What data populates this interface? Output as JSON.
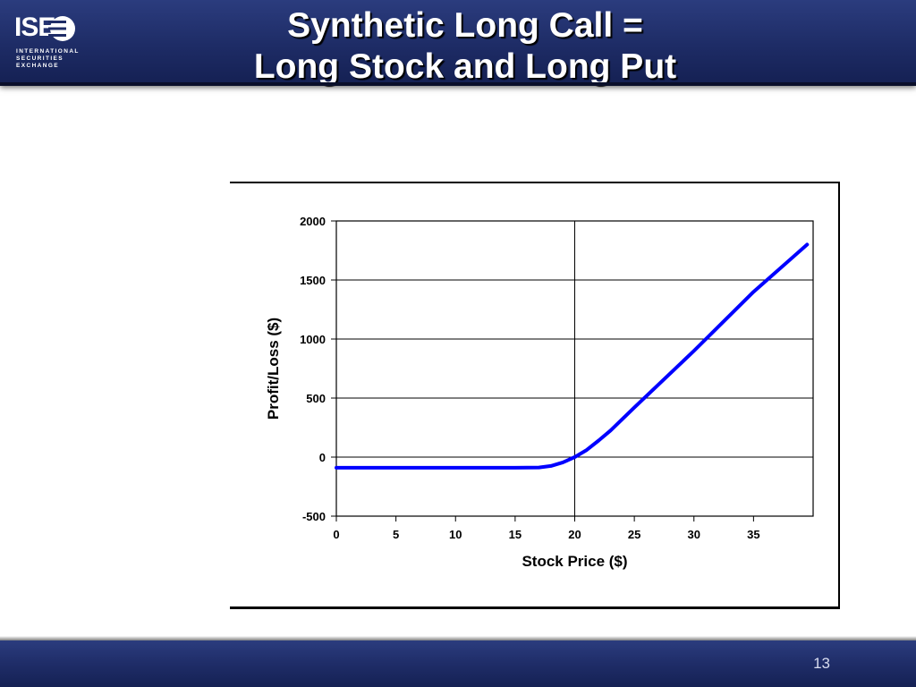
{
  "header": {
    "title_line1": "Synthetic Long Call =",
    "title_line2": "Long Stock and Long Put",
    "logo": {
      "mark": "ISE",
      "sub_line1": "INTERNATIONAL",
      "sub_line2": "SECURITIES",
      "sub_line3": "EXCHANGE"
    }
  },
  "footer": {
    "page_number": "13"
  },
  "colors": {
    "bar": "#1e2c66",
    "series": "#0000ff",
    "grid": "#000000"
  },
  "chart_data": {
    "type": "line",
    "title": "",
    "xlabel": "Stock Price ($)",
    "ylabel": "Profit/Loss ($)",
    "xlim": [
      0,
      40
    ],
    "ylim": [
      -500,
      2000
    ],
    "xticks": [
      0,
      5,
      10,
      15,
      20,
      25,
      30,
      35
    ],
    "yticks": [
      -500,
      0,
      500,
      1000,
      1500,
      2000
    ],
    "grid": "horizontal gridlines with vertical line at x=20",
    "vline": 20,
    "series": [
      {
        "x": [
          0,
          5,
          10,
          15,
          17,
          18,
          19,
          20,
          21,
          22,
          23,
          25,
          30,
          35,
          39.5
        ],
        "y": [
          -90,
          -90,
          -90,
          -90,
          -88,
          -75,
          -45,
          0,
          60,
          140,
          225,
          420,
          900,
          1400,
          1800
        ]
      }
    ]
  }
}
